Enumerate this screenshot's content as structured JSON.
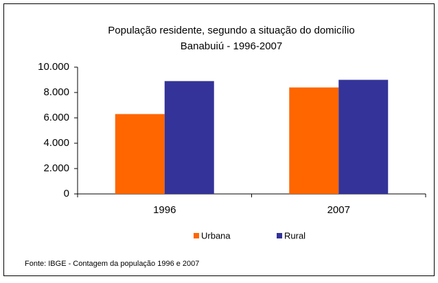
{
  "chart_data": {
    "type": "bar",
    "title": [
      "População residente, segundo a situação do domicílio",
      "Banabuiú - 1996-2007"
    ],
    "categories": [
      "1996",
      "2007"
    ],
    "series": [
      {
        "name": "Urbana",
        "color": "#ff6600",
        "values": [
          6300,
          8400
        ]
      },
      {
        "name": "Rural",
        "color": "#333399",
        "values": [
          8900,
          9000
        ]
      }
    ],
    "ylim": [
      0,
      10000
    ],
    "yticks": [
      0,
      {
        "value": 2000,
        "label": "2.000"
      },
      {
        "value": 4000,
        "label": "4.000"
      },
      {
        "value": 6000,
        "label": "6.000"
      },
      {
        "value": 8000,
        "label": "8.000"
      },
      {
        "value": 10000,
        "label": "10.000"
      }
    ],
    "legend": "bottom",
    "source": "Fonte: IBGE - Contagem da população 1996 e 2007"
  }
}
